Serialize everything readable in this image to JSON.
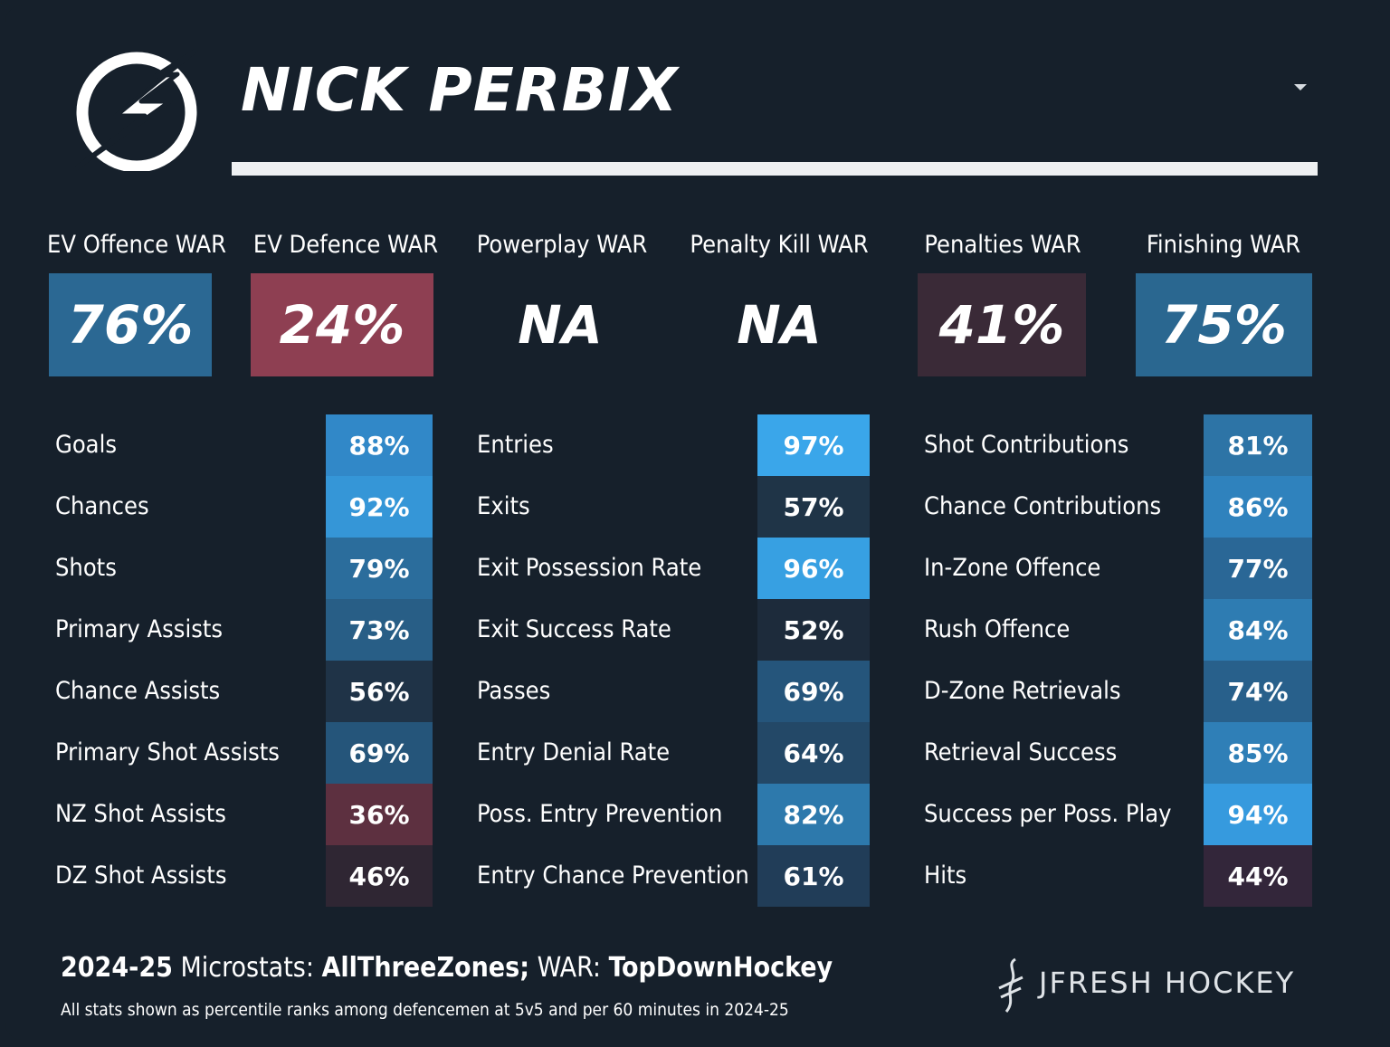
{
  "player": {
    "name": "NICK PERBIX"
  },
  "war": [
    {
      "label": "EV Offence WAR",
      "value": "76%",
      "color": "#2b6893"
    },
    {
      "label": "EV Defence WAR",
      "value": "24%",
      "color": "#8e3f52"
    },
    {
      "label": "Powerplay WAR",
      "value": "NA",
      "color": ""
    },
    {
      "label": "Penalty Kill WAR",
      "value": "NA",
      "color": ""
    },
    {
      "label": "Penalties WAR",
      "value": "41%",
      "color": "#3a2a37"
    },
    {
      "label": "Finishing WAR",
      "value": "75%",
      "color": "#2a6790"
    }
  ],
  "tables": [
    [
      {
        "label": "Goals",
        "value": "88%",
        "color": "#3188c8"
      },
      {
        "label": "Chances",
        "value": "92%",
        "color": "#3596d7"
      },
      {
        "label": "Shots",
        "value": "79%",
        "color": "#2b6d9c"
      },
      {
        "label": "Primary Assists",
        "value": "73%",
        "color": "#285e86"
      },
      {
        "label": "Chance Assists",
        "value": "56%",
        "color": "#1f3347"
      },
      {
        "label": "Primary Shot Assists",
        "value": "69%",
        "color": "#25557a"
      },
      {
        "label": "NZ Shot Assists",
        "value": "36%",
        "color": "#5d3040"
      },
      {
        "label": "DZ Shot Assists",
        "value": "46%",
        "color": "#2f2633"
      }
    ],
    [
      {
        "label": "Entries",
        "value": "97%",
        "color": "#3aa6ea"
      },
      {
        "label": "Exits",
        "value": "57%",
        "color": "#1f3447"
      },
      {
        "label": "Exit Possession Rate",
        "value": "96%",
        "color": "#37a0e2"
      },
      {
        "label": "Exit Success Rate",
        "value": "52%",
        "color": "#1d2b3b"
      },
      {
        "label": "Passes",
        "value": "69%",
        "color": "#25557b"
      },
      {
        "label": "Entry Denial Rate",
        "value": "64%",
        "color": "#234867"
      },
      {
        "label": "Poss. Entry Prevention",
        "value": "82%",
        "color": "#2d79ac"
      },
      {
        "label": "Entry Chance Prevention",
        "value": "61%",
        "color": "#213d58"
      }
    ],
    [
      {
        "label": "Shot Contributions",
        "value": "81%",
        "color": "#2d74a6"
      },
      {
        "label": "Chance Contributions",
        "value": "86%",
        "color": "#2f82bd"
      },
      {
        "label": "In-Zone Offence",
        "value": "77%",
        "color": "#2a6796"
      },
      {
        "label": "Rush Offence",
        "value": "84%",
        "color": "#2e7cb2"
      },
      {
        "label": "D-Zone Retrievals",
        "value": "74%",
        "color": "#28608b"
      },
      {
        "label": "Retrieval Success",
        "value": "85%",
        "color": "#2f7fb7"
      },
      {
        "label": "Success per Poss. Play",
        "value": "94%",
        "color": "#369ade"
      },
      {
        "label": "Hits",
        "value": "44%",
        "color": "#33263a"
      }
    ]
  ],
  "footer": {
    "season": "2024-25",
    "microstats_label": "Microstats:",
    "microstats_source": "AllThreeZones;",
    "war_label": "WAR:",
    "war_source": "TopDownHockey",
    "note": "All stats shown as percentile ranks among defencemen at 5v5 and per 60 minutes in 2024-25",
    "brand": "JFRESH HOCKEY"
  }
}
